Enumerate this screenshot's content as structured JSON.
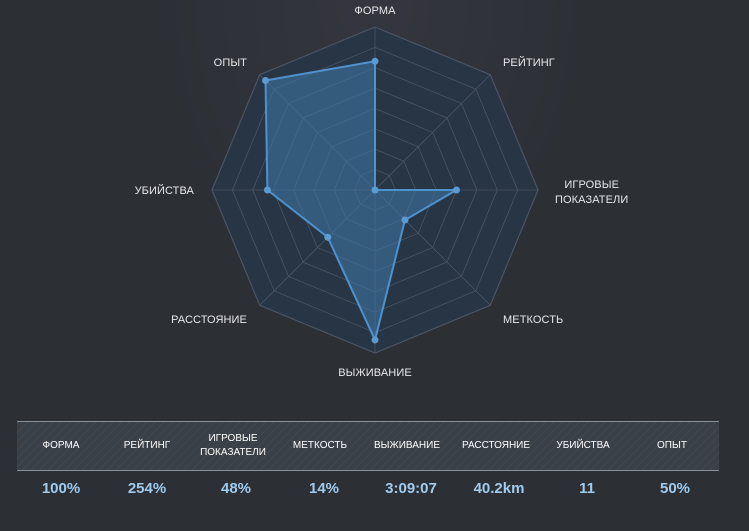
{
  "chart_data": {
    "type": "radar",
    "axes": [
      "ФОРМА",
      "РЕЙТИНГ",
      "ИГРОВЫЕ\nПОКАЗАТЕЛИ",
      "МЕТКОСТЬ",
      "ВЫЖИВАНИЕ",
      "РАССТОЯНИЕ",
      "УБИЙСТВА",
      "ОПЫТ"
    ],
    "values": [
      0.79,
      0.0,
      0.5,
      0.26,
      0.92,
      0.41,
      0.66,
      0.95
    ],
    "range": [
      0,
      1
    ],
    "rings": 8,
    "grid": true,
    "colors": {
      "fill": "#3f79ab",
      "line": "#4d91cf",
      "point": "#5a9bd4",
      "grid": "#4a5566"
    }
  },
  "stats": [
    {
      "label": "ФОРМА",
      "value": "100%"
    },
    {
      "label": "РЕЙТИНГ",
      "value": "254%"
    },
    {
      "label": "ИГРОВЫЕ\nПОКАЗАТЕЛИ",
      "value": "48%"
    },
    {
      "label": "МЕТКОСТЬ",
      "value": "14%"
    },
    {
      "label": "ВЫЖИВАНИЕ",
      "value": "3:09:07"
    },
    {
      "label": "РАССТОЯНИЕ",
      "value": "40.2km"
    },
    {
      "label": "УБИЙСТВА",
      "value": "11"
    },
    {
      "label": "ОПЫТ",
      "value": "50%"
    }
  ]
}
